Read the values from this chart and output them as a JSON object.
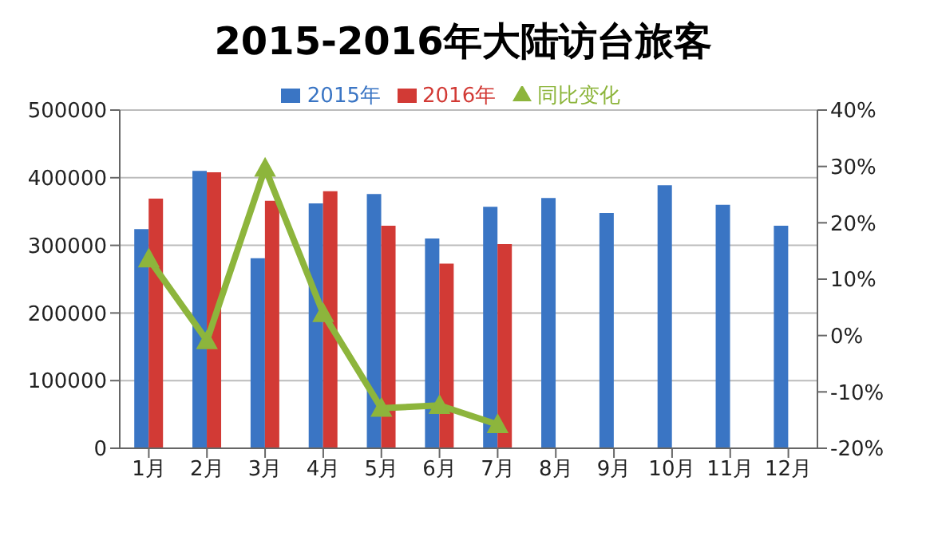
{
  "chart_data": {
    "type": "bar",
    "title": "2015-2016年大陆访台旅客",
    "categories": [
      "1月",
      "2月",
      "3月",
      "4月",
      "5月",
      "6月",
      "7月",
      "8月",
      "9月",
      "10月",
      "11月",
      "12月"
    ],
    "series": [
      {
        "name": "2015年",
        "color": "#3a75c4",
        "values": [
          324000,
          410000,
          281000,
          362000,
          376000,
          310000,
          357000,
          370000,
          348000,
          389000,
          360000,
          329000
        ]
      },
      {
        "name": "2016年",
        "color": "#d23a35",
        "values": [
          369000,
          408000,
          366000,
          380000,
          329000,
          273000,
          302000,
          null,
          null,
          null,
          null,
          null
        ]
      },
      {
        "name": "同比变化",
        "type": "line",
        "axis": "y2",
        "color": "#8db53c",
        "marker": "triangle",
        "values": [
          13.6,
          -0.9,
          29.7,
          3.9,
          -12.9,
          -12.4,
          -15.8,
          null,
          null,
          null,
          null,
          null
        ]
      }
    ],
    "ylim": [
      0,
      500000
    ],
    "yticks": [
      0,
      100000,
      200000,
      300000,
      400000,
      500000
    ],
    "y2lim": [
      -20,
      40
    ],
    "y2ticks": [
      {
        "value": -20,
        "label": "-20%"
      },
      {
        "value": -10,
        "label": "-10%"
      },
      {
        "value": 0,
        "label": "0%"
      },
      {
        "value": 10,
        "label": "10%"
      },
      {
        "value": 20,
        "label": "20%"
      },
      {
        "value": 30,
        "label": "30%"
      },
      {
        "value": 40,
        "label": "40%"
      }
    ],
    "grid": "y",
    "legend": "top"
  }
}
